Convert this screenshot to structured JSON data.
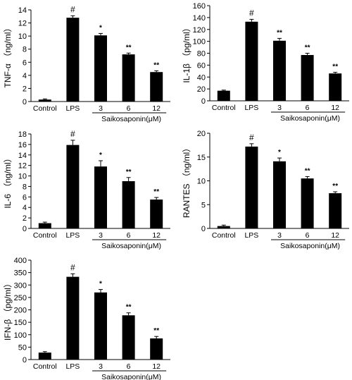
{
  "chart_data": [
    {
      "type": "bar",
      "ylabel": "TNF-α （ng/ml）",
      "xlabel": "Saikosaponin(μM)",
      "categories": [
        "Control",
        "LPS",
        "3",
        "6",
        "12"
      ],
      "values": [
        0.3,
        12.8,
        10.1,
        7.2,
        4.5
      ],
      "errors": [
        0.1,
        0.3,
        0.3,
        0.2,
        0.2
      ],
      "annotations": [
        "",
        "#",
        "*",
        "**",
        "**"
      ],
      "ylim": [
        0,
        14
      ],
      "yticks": [
        "0",
        "2",
        "4",
        "6",
        "8",
        "10",
        "12",
        "14"
      ]
    },
    {
      "type": "bar",
      "ylabel": "IL-1β （pg/ml）",
      "xlabel": "Saikosaponin(μM)",
      "categories": [
        "Control",
        "LPS",
        "3",
        "6",
        "12"
      ],
      "values": [
        17,
        133,
        101,
        77,
        46
      ],
      "errors": [
        1,
        4,
        4,
        3,
        2
      ],
      "annotations": [
        "",
        "#",
        "**",
        "**",
        "**"
      ],
      "ylim": [
        0,
        160
      ],
      "yticks": [
        "0",
        "20",
        "40",
        "60",
        "80",
        "100",
        "120",
        "140",
        "160"
      ]
    },
    {
      "type": "bar",
      "ylabel": "IL-6 （ng/ml）",
      "xlabel": "Saikosaponin(μM)",
      "categories": [
        "Control",
        "LPS",
        "3",
        "6",
        "12"
      ],
      "values": [
        1.0,
        15.9,
        11.8,
        9.0,
        5.5
      ],
      "errors": [
        0.2,
        0.9,
        1.1,
        0.7,
        0.4
      ],
      "annotations": [
        "",
        "#",
        "*",
        "**",
        "**"
      ],
      "ylim": [
        0,
        18
      ],
      "yticks": [
        "0",
        "2",
        "4",
        "6",
        "8",
        "10",
        "12",
        "14",
        "16",
        "18"
      ]
    },
    {
      "type": "bar",
      "ylabel": "RANTES （ng/ml）",
      "xlabel": "Saikosaponin(μM)",
      "categories": [
        "Control",
        "LPS",
        "3",
        "6",
        "12"
      ],
      "values": [
        0.5,
        17.2,
        14.1,
        10.5,
        7.4
      ],
      "errors": [
        0.2,
        0.6,
        0.7,
        0.4,
        0.3
      ],
      "annotations": [
        "",
        "#",
        "*",
        "**",
        "**"
      ],
      "ylim": [
        0,
        20
      ],
      "yticks": [
        "0",
        "5",
        "10",
        "15",
        "20"
      ]
    },
    {
      "type": "bar",
      "ylabel": "IFN-β （pg/ml）",
      "xlabel": "Saikosaponin(μM)",
      "categories": [
        "Control",
        "LPS",
        "3",
        "6",
        "12"
      ],
      "values": [
        28,
        333,
        270,
        178,
        85
      ],
      "errors": [
        4,
        12,
        12,
        10,
        8
      ],
      "annotations": [
        "",
        "#",
        "*",
        "**",
        "**"
      ],
      "ylim": [
        0,
        400
      ],
      "yticks": [
        "0",
        "50",
        "100",
        "150",
        "200",
        "250",
        "300",
        "350",
        "400"
      ]
    }
  ]
}
